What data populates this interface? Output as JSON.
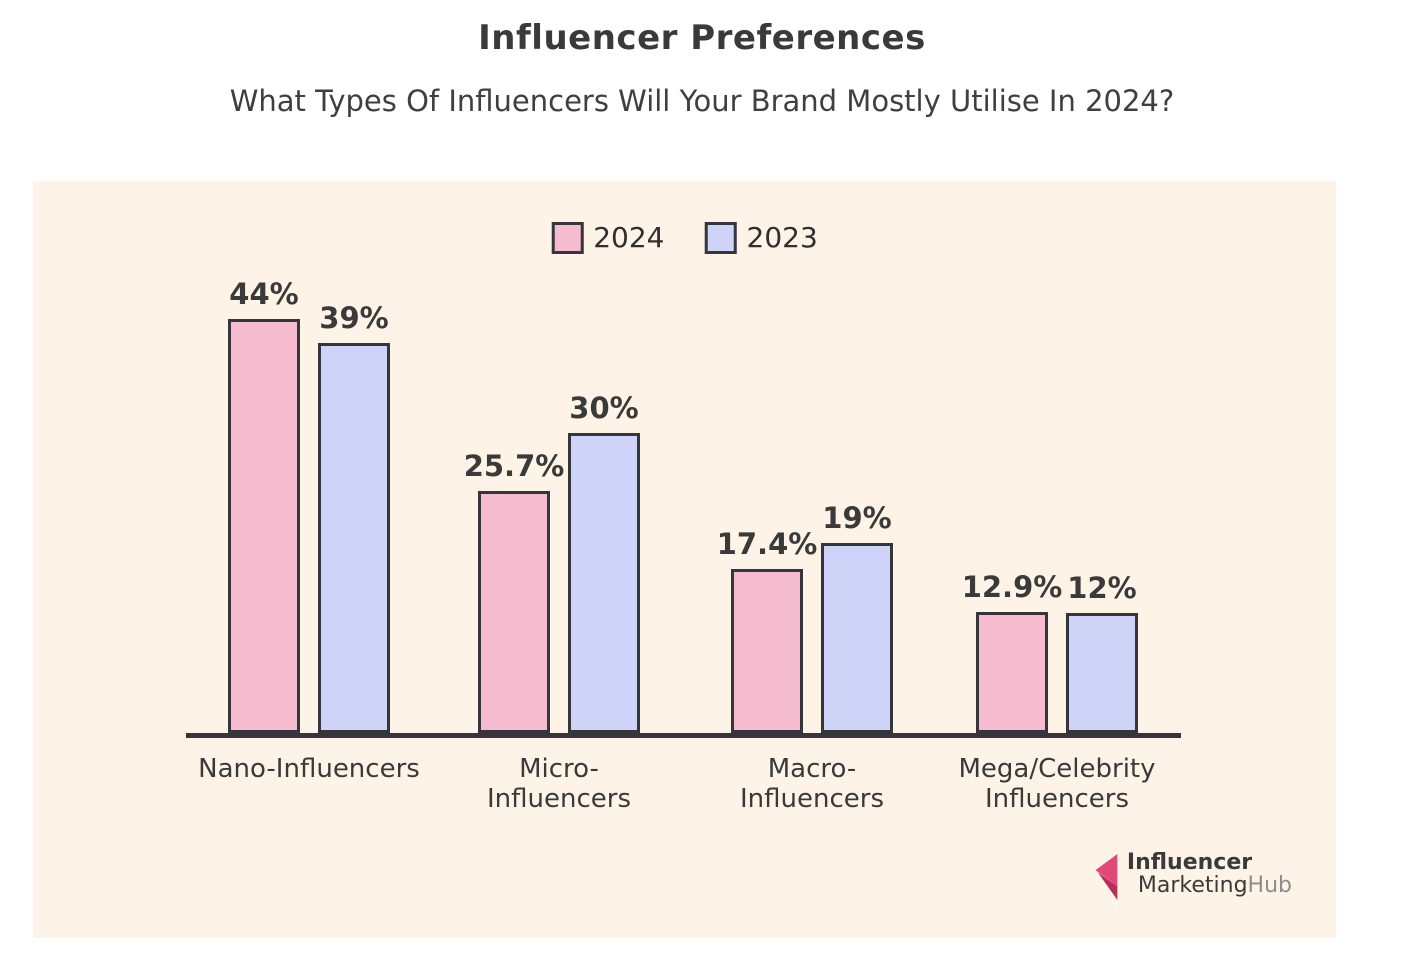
{
  "header": {
    "title": "Influencer Preferences",
    "subtitle": "What Types Of Influencers Will Your Brand Mostly Utilise In 2024?"
  },
  "chart_data": {
    "type": "bar",
    "title": "Influencer Preferences",
    "subtitle": "What Types Of Influencers Will Your Brand Mostly Utilise In 2024?",
    "categories": [
      "Nano-Influencers",
      "Micro-\nInfluencers",
      "Macro-\nInfluencers",
      "Mega/Celebrity\nInfluencers"
    ],
    "series": [
      {
        "name": "2024",
        "color": "#f5bbcf",
        "values": [
          44,
          25.7,
          17.4,
          12.9
        ],
        "labels": [
          "44%",
          "25.7%",
          "17.4%",
          "12.9%"
        ]
      },
      {
        "name": "2023",
        "color": "#cdd4f7",
        "values": [
          39,
          30,
          19,
          12
        ],
        "labels": [
          "39%",
          "30%",
          "19%",
          "12%"
        ]
      }
    ],
    "ylim": [
      0,
      48
    ],
    "grid": false,
    "legend_position": "top-center",
    "bar_border_color": "#35353b",
    "axis_color": "#35353b",
    "panel_background": "#fdf4e7"
  },
  "logo": {
    "line1": "Influencer",
    "line2_dark": "Marketing",
    "line2_gray": "Hub",
    "mark_color_light": "#e0497a",
    "mark_color_dark": "#b72e5c"
  }
}
